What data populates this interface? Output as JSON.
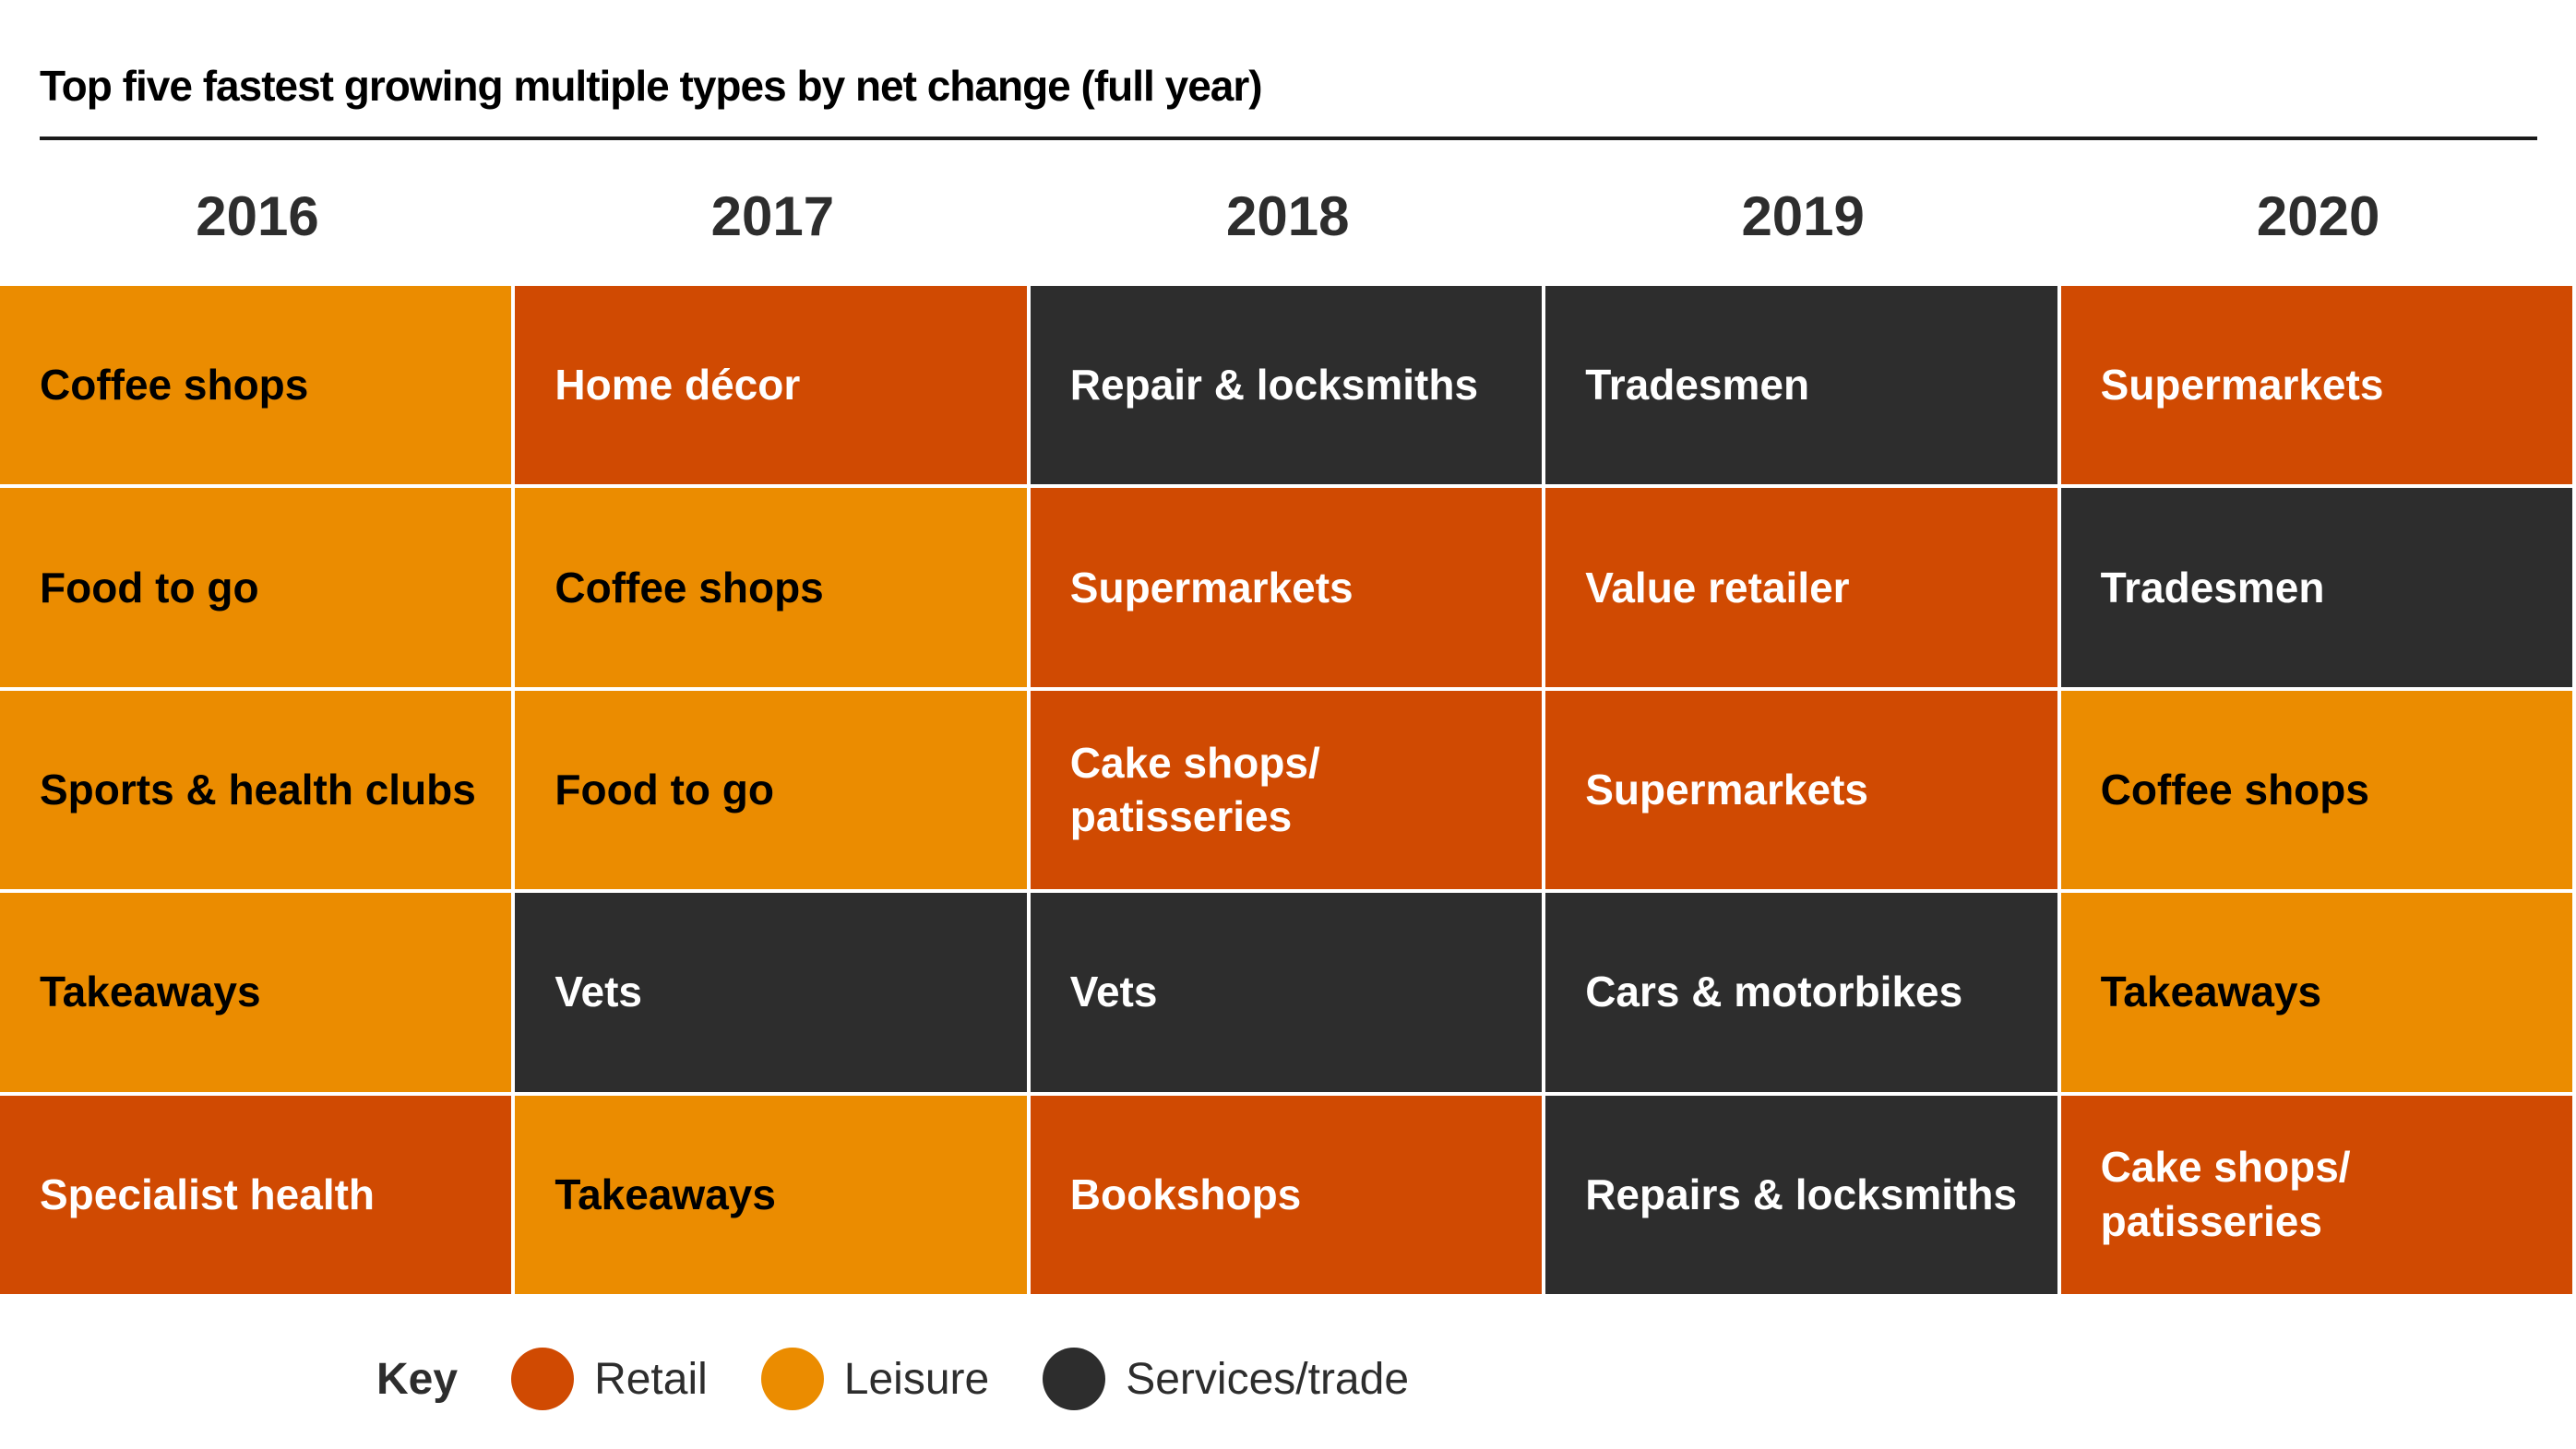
{
  "chart_data": {
    "type": "table",
    "title": "Top five fastest growing multiple types by net change (full year)",
    "colors": {
      "Retail": "#D04A02",
      "Leisure": "#EB8C00",
      "Services/trade": "#2D2D2D"
    },
    "columns": [
      {
        "year": "2016",
        "items": [
          {
            "name": "Coffee shops",
            "category": "Leisure"
          },
          {
            "name": "Food to go",
            "category": "Leisure"
          },
          {
            "name": "Sports & health clubs",
            "category": "Leisure"
          },
          {
            "name": "Takeaways",
            "category": "Leisure"
          },
          {
            "name": "Specialist health",
            "category": "Retail"
          }
        ]
      },
      {
        "year": "2017",
        "items": [
          {
            "name": "Home décor",
            "category": "Retail"
          },
          {
            "name": "Coffee shops",
            "category": "Leisure"
          },
          {
            "name": "Food to go",
            "category": "Leisure"
          },
          {
            "name": "Vets",
            "category": "Services/trade"
          },
          {
            "name": "Takeaways",
            "category": "Leisure"
          }
        ]
      },
      {
        "year": "2018",
        "items": [
          {
            "name": "Repair & locksmiths",
            "category": "Services/trade"
          },
          {
            "name": "Supermarkets",
            "category": "Retail"
          },
          {
            "name": "Cake shops/ patisseries",
            "category": "Retail"
          },
          {
            "name": "Vets",
            "category": "Services/trade"
          },
          {
            "name": "Bookshops",
            "category": "Retail"
          }
        ]
      },
      {
        "year": "2019",
        "items": [
          {
            "name": "Tradesmen",
            "category": "Services/trade"
          },
          {
            "name": "Value retailer",
            "category": "Retail"
          },
          {
            "name": "Supermarkets",
            "category": "Retail"
          },
          {
            "name": "Cars & motorbikes",
            "category": "Services/trade"
          },
          {
            "name": "Repairs & locksmiths",
            "category": "Services/trade"
          }
        ]
      },
      {
        "year": "2020",
        "items": [
          {
            "name": "Supermarkets",
            "category": "Retail"
          },
          {
            "name": "Tradesmen",
            "category": "Services/trade"
          },
          {
            "name": "Coffee shops",
            "category": "Leisure"
          },
          {
            "name": "Takeaways",
            "category": "Leisure"
          },
          {
            "name": "Cake shops/ patisseries",
            "category": "Retail"
          }
        ]
      }
    ],
    "legend": {
      "label": "Key",
      "entries": [
        "Retail",
        "Leisure",
        "Services/trade"
      ],
      "placement": "bottom"
    }
  }
}
